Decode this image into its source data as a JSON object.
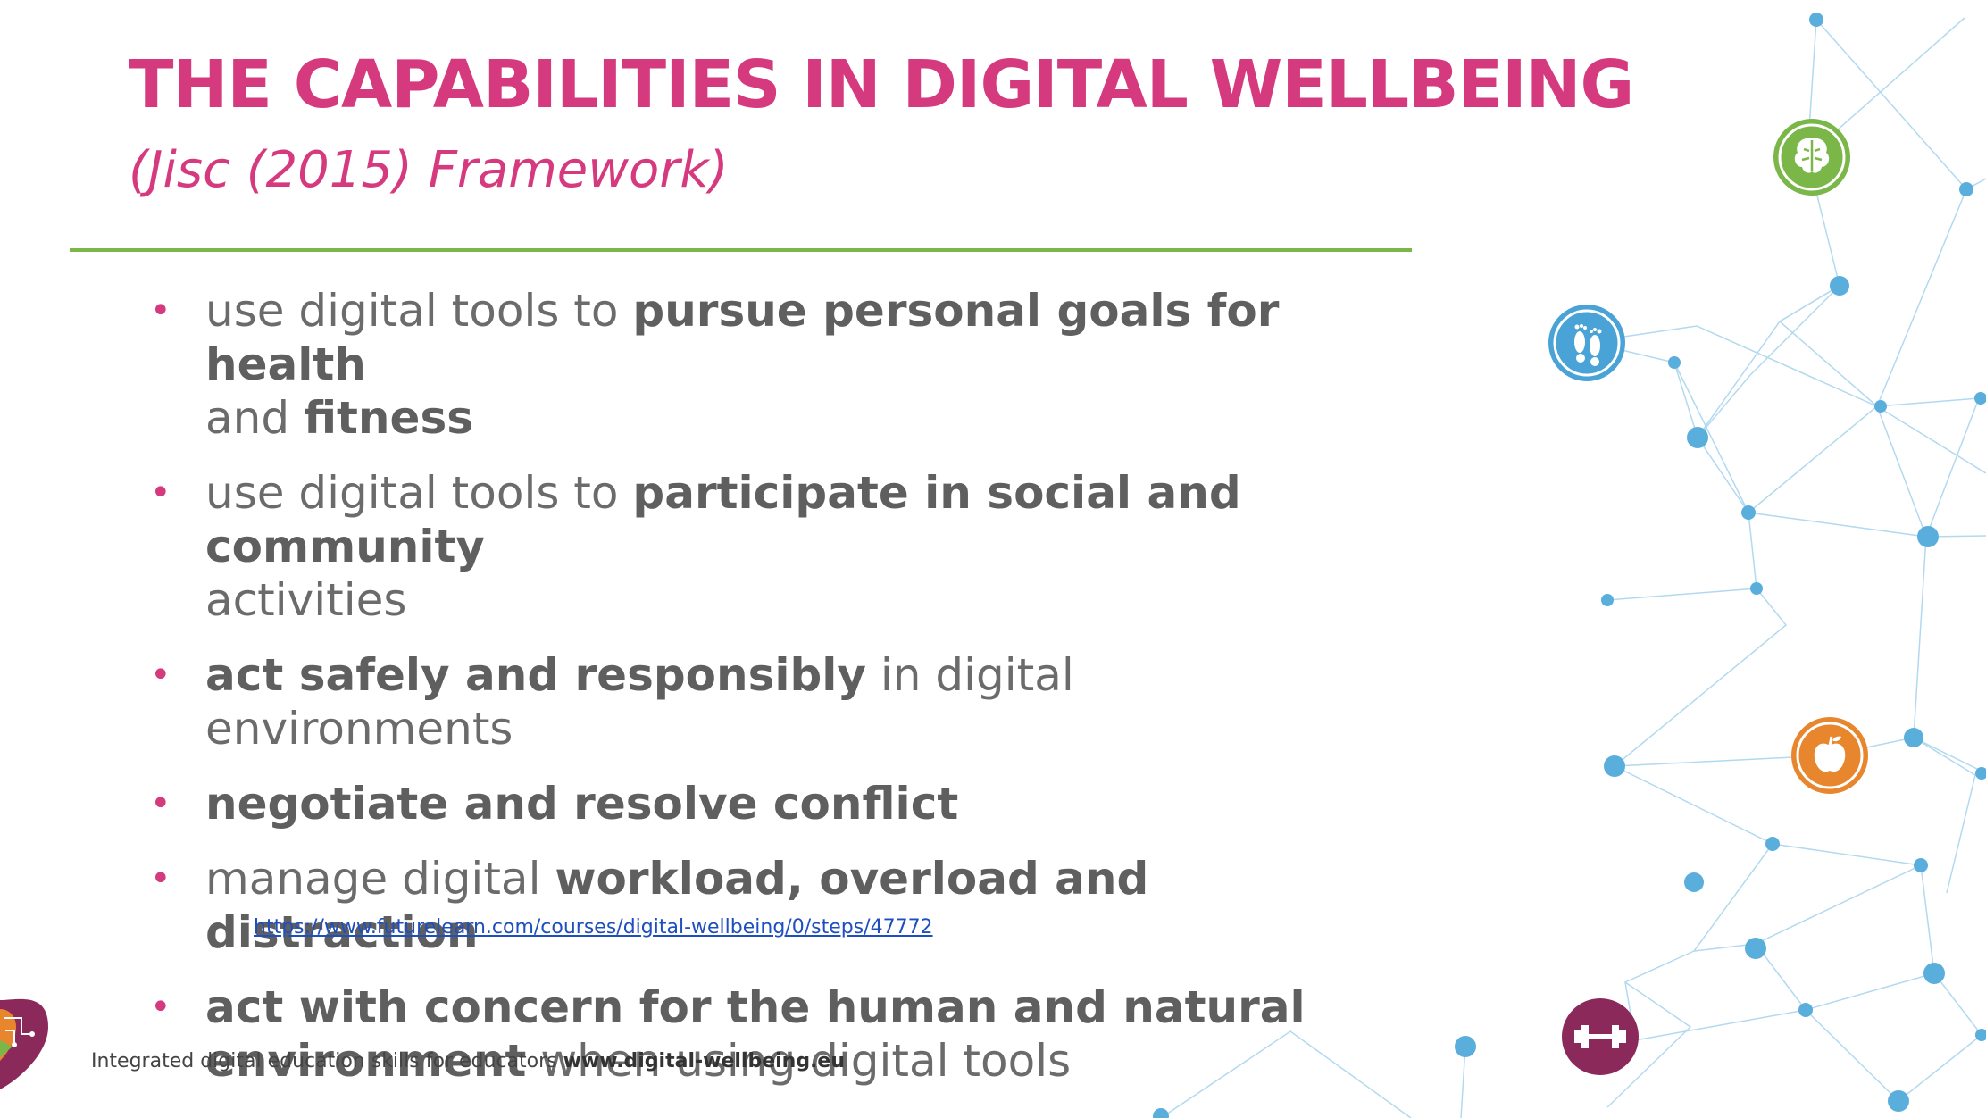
{
  "title": "THE CAPABILITIES IN DIGITAL WELLBEING",
  "subtitle": "(Jisc (2015) Framework)",
  "bullets": [
    {
      "parts": [
        {
          "t": "use digital tools to ",
          "b": false
        },
        {
          "t": "pursue personal goals for health",
          "b": true
        }
      ],
      "parts2": [
        {
          "t": "and ",
          "b": false
        },
        {
          "t": "fitness",
          "b": true
        }
      ]
    },
    {
      "parts": [
        {
          "t": "use digital tools to ",
          "b": false
        },
        {
          "t": "participate in social and community",
          "b": true
        }
      ],
      "parts2": [
        {
          "t": "activities",
          "b": false
        }
      ]
    },
    {
      "parts": [
        {
          "t": "act safely and responsibly",
          "b": true
        },
        {
          "t": " in digital environments",
          "b": false
        }
      ]
    },
    {
      "parts": [
        {
          "t": "negotiate and resolve conflict",
          "b": true
        }
      ]
    },
    {
      "parts": [
        {
          "t": "manage digital ",
          "b": false
        },
        {
          "t": "workload, overload and distraction",
          "b": true
        }
      ]
    },
    {
      "parts": [
        {
          "t": "act with concern for the human and natural",
          "b": true
        }
      ],
      "parts2": [
        {
          "t": "environment",
          "b": true
        },
        {
          "t": " when using digital tools",
          "b": false
        }
      ]
    }
  ],
  "source_link": "https://www.futurelearn.com/courses/digital-wellbeing/0/steps/47772",
  "footer": {
    "text": "Integrated digital education skills for educators ",
    "site": "www.digital-wellbeing.eu"
  },
  "icons": [
    {
      "name": "brain-icon",
      "color": "#7ab648"
    },
    {
      "name": "footprints-icon",
      "color": "#4aa3d6"
    },
    {
      "name": "apple-icon",
      "color": "#e8862d"
    },
    {
      "name": "dumbbell-icon",
      "color": "#8b2a5a"
    }
  ],
  "colors": {
    "title": "#d63a7e",
    "divider": "#7ab648",
    "text": "#6b6b6b",
    "network": "#5aaedc"
  }
}
